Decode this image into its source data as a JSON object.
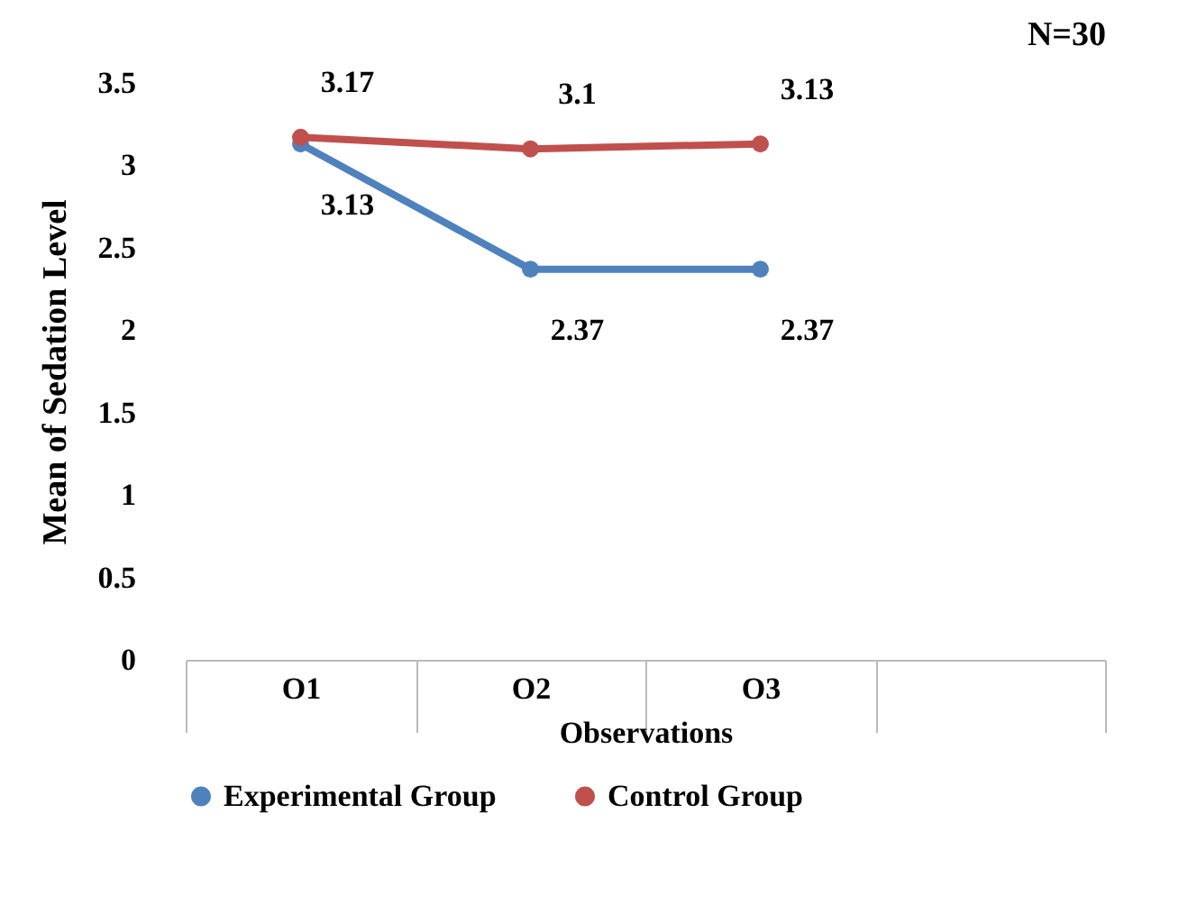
{
  "chart_data": {
    "type": "line",
    "ylabel": "Mean of Sedation Level",
    "xlabel": "Observations",
    "annotations": [
      "N=30"
    ],
    "categories": [
      "O1",
      "O2",
      "O3",
      null
    ],
    "series": [
      {
        "name": "Experimental Group",
        "color": "#4f81bd",
        "values": [
          3.13,
          2.37,
          2.37,
          null
        ]
      },
      {
        "name": "Control Group",
        "color": "#c0504d",
        "values": [
          3.17,
          3.1,
          3.13,
          null
        ]
      }
    ],
    "ylim": [
      0,
      3.5
    ],
    "yticks": [
      0,
      0.5,
      1,
      1.5,
      2,
      2.5,
      3,
      3.5
    ],
    "grid": false,
    "legend": "bottom",
    "marker": "circle",
    "line_style": "solid",
    "data_labels": true
  }
}
